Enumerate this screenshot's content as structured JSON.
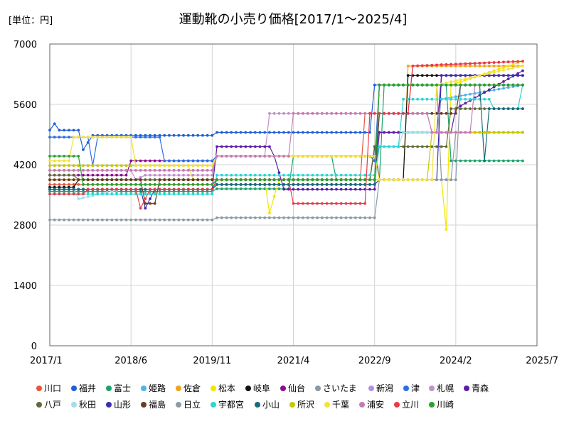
{
  "chart_data": {
    "type": "line",
    "title": "運動靴の小売り価格[2017/1～2025/4]",
    "unit_label": "[単位：円]",
    "xlabel": "",
    "ylabel": "",
    "x_ticks": [
      "2017/1",
      "2018/6",
      "2019/11",
      "2021/4",
      "2022/9",
      "2024/2",
      "2025/7"
    ],
    "x_range": [
      "2017-01",
      "2025-07"
    ],
    "y_ticks": [
      "0",
      "1400",
      "2800",
      "4200",
      "5600",
      "7000"
    ],
    "ylim": [
      0,
      7000
    ],
    "grid": true,
    "legend_position": "bottom",
    "series": [
      {
        "name": "川口",
        "color": "#e8553a",
        "points": [
          [
            "2017-01",
            3740
          ],
          [
            "2019-11",
            3740
          ],
          [
            "2019-12",
            3850
          ],
          [
            "2022-06",
            3850
          ],
          [
            "2022-07",
            5390
          ],
          [
            "2023-04",
            5390
          ],
          [
            "2023-05",
            6490
          ],
          [
            "2025-04",
            6600
          ]
        ]
      },
      {
        "name": "福井",
        "color": "#1f5fd6",
        "points": [
          [
            "2017-01",
            5000
          ],
          [
            "2017-02",
            5150
          ],
          [
            "2017-03",
            5000
          ],
          [
            "2017-07",
            5000
          ],
          [
            "2017-08",
            4550
          ],
          [
            "2017-10",
            4880
          ],
          [
            "2018-12",
            4880
          ],
          [
            "2019-01",
            4880
          ],
          [
            "2019-11",
            4880
          ],
          [
            "2019-12",
            4950
          ],
          [
            "2022-08",
            4950
          ],
          [
            "2022-09",
            6050
          ],
          [
            "2025-04",
            6050
          ]
        ]
      },
      {
        "name": "富士",
        "color": "#1aa36a",
        "points": [
          [
            "2017-01",
            3580
          ],
          [
            "2019-11",
            3580
          ],
          [
            "2019-12",
            3640
          ],
          [
            "2021-03",
            3640
          ],
          [
            "2021-04",
            4400
          ],
          [
            "2021-12",
            4400
          ],
          [
            "2022-01",
            3850
          ],
          [
            "2022-10",
            3850
          ],
          [
            "2022-11",
            6050
          ],
          [
            "2023-12",
            6050
          ],
          [
            "2024-01",
            4290
          ],
          [
            "2025-04",
            4290
          ]
        ]
      },
      {
        "name": "姫路",
        "color": "#4fb3e8",
        "points": [
          [
            "2017-01",
            3630
          ],
          [
            "2019-11",
            3630
          ],
          [
            "2019-12",
            3740
          ],
          [
            "2022-09",
            3740
          ],
          [
            "2022-10",
            5390
          ],
          [
            "2023-10",
            5390
          ],
          [
            "2023-11",
            5720
          ],
          [
            "2025-04",
            6050
          ]
        ]
      },
      {
        "name": "佐倉",
        "color": "#f0a21c",
        "points": [
          [
            "2017-01",
            3850
          ],
          [
            "2022-09",
            3850
          ],
          [
            "2022-10",
            3850
          ],
          [
            "2023-03",
            3850
          ],
          [
            "2023-04",
            6490
          ],
          [
            "2025-04",
            6490
          ]
        ]
      },
      {
        "name": "松本",
        "color": "#f2e600",
        "points": [
          [
            "2017-01",
            4840
          ],
          [
            "2018-06",
            4840
          ],
          [
            "2018-07",
            4180
          ],
          [
            "2019-06",
            4180
          ],
          [
            "2019-07",
            3850
          ],
          [
            "2020-10",
            3850
          ],
          [
            "2020-11",
            3080
          ],
          [
            "2021-01",
            3850
          ],
          [
            "2023-11",
            3850
          ],
          [
            "2023-12",
            2700
          ],
          [
            "2024-01",
            6050
          ],
          [
            "2025-04",
            6600
          ]
        ]
      },
      {
        "name": "岐阜",
        "color": "#111111",
        "points": [
          [
            "2017-01",
            3680
          ],
          [
            "2017-06",
            3680
          ],
          [
            "2017-07",
            3850
          ],
          [
            "2022-08",
            3850
          ],
          [
            "2022-09",
            4620
          ],
          [
            "2022-10",
            3850
          ],
          [
            "2023-03",
            3850
          ],
          [
            "2023-04",
            6270
          ],
          [
            "2025-04",
            6270
          ]
        ]
      },
      {
        "name": "仙台",
        "color": "#8a0f8f",
        "points": [
          [
            "2017-01",
            3960
          ],
          [
            "2018-05",
            3960
          ],
          [
            "2018-06",
            4290
          ],
          [
            "2019-11",
            4290
          ],
          [
            "2019-12",
            4400
          ],
          [
            "2022-09",
            4400
          ],
          [
            "2022-10",
            4950
          ],
          [
            "2023-10",
            4950
          ],
          [
            "2023-11",
            6270
          ],
          [
            "2025-04",
            6270
          ]
        ]
      },
      {
        "name": "さいたま",
        "color": "#8899a6",
        "points": [
          [
            "2017-01",
            3630
          ],
          [
            "2019-11",
            3630
          ],
          [
            "2019-12",
            3850
          ],
          [
            "2022-09",
            3850
          ],
          [
            "2022-10",
            6050
          ],
          [
            "2023-10",
            6050
          ],
          [
            "2023-11",
            3850
          ],
          [
            "2024-02",
            3850
          ],
          [
            "2024-03",
            6050
          ],
          [
            "2025-04",
            6050
          ]
        ]
      },
      {
        "name": "新潟",
        "color": "#b28ee6",
        "points": [
          [
            "2017-01",
            4070
          ],
          [
            "2019-11",
            4070
          ],
          [
            "2019-12",
            4400
          ],
          [
            "2022-09",
            4400
          ],
          [
            "2022-10",
            4950
          ],
          [
            "2025-04",
            4950
          ]
        ]
      },
      {
        "name": "津",
        "color": "#2a6ee8",
        "points": [
          [
            "2017-01",
            4840
          ],
          [
            "2017-09",
            4840
          ],
          [
            "2017-10",
            4180
          ],
          [
            "2017-11",
            4840
          ],
          [
            "2018-12",
            4840
          ],
          [
            "2019-01",
            4290
          ],
          [
            "2019-11",
            4290
          ],
          [
            "2019-12",
            4400
          ],
          [
            "2022-08",
            4400
          ],
          [
            "2022-09",
            4290
          ],
          [
            "2022-10",
            6050
          ],
          [
            "2025-04",
            6050
          ]
        ]
      },
      {
        "name": "札幌",
        "color": "#c28fcf",
        "points": [
          [
            "2017-01",
            4070
          ],
          [
            "2018-06",
            4070
          ],
          [
            "2018-07",
            3850
          ],
          [
            "2018-09",
            3960
          ],
          [
            "2019-11",
            3960
          ],
          [
            "2019-12",
            4400
          ],
          [
            "2020-10",
            4400
          ],
          [
            "2020-11",
            5390
          ],
          [
            "2023-08",
            5390
          ],
          [
            "2023-09",
            4950
          ],
          [
            "2025-04",
            4950
          ]
        ]
      },
      {
        "name": "青森",
        "color": "#5b1ea8",
        "points": [
          [
            "2017-01",
            3630
          ],
          [
            "2019-11",
            3630
          ],
          [
            "2019-12",
            4620
          ],
          [
            "2020-11",
            4620
          ],
          [
            "2020-12",
            4400
          ],
          [
            "2021-02",
            3630
          ],
          [
            "2022-09",
            3630
          ],
          [
            "2022-10",
            4950
          ],
          [
            "2024-01",
            4950
          ],
          [
            "2024-02",
            5500
          ],
          [
            "2025-04",
            6380
          ]
        ]
      },
      {
        "name": "八戸",
        "color": "#5e6b3a",
        "points": [
          [
            "2017-01",
            3960
          ],
          [
            "2017-06",
            3960
          ],
          [
            "2017-07",
            3850
          ],
          [
            "2019-11",
            3850
          ],
          [
            "2019-12",
            3850
          ],
          [
            "2022-08",
            3850
          ],
          [
            "2022-09",
            4620
          ],
          [
            "2023-12",
            4620
          ],
          [
            "2024-01",
            5500
          ],
          [
            "2025-04",
            5500
          ]
        ]
      },
      {
        "name": "秋田",
        "color": "#9fe0e8",
        "points": [
          [
            "2017-01",
            3630
          ],
          [
            "2017-06",
            3630
          ],
          [
            "2017-07",
            3410
          ],
          [
            "2018-04",
            3630
          ],
          [
            "2019-11",
            3630
          ],
          [
            "2019-12",
            3740
          ],
          [
            "2022-09",
            3740
          ],
          [
            "2022-10",
            4620
          ],
          [
            "2023-02",
            4620
          ],
          [
            "2023-03",
            4950
          ],
          [
            "2025-04",
            4950
          ]
        ]
      },
      {
        "name": "山形",
        "color": "#3a2fb0",
        "points": [
          [
            "2017-01",
            3630
          ],
          [
            "2018-08",
            3630
          ],
          [
            "2018-09",
            3190
          ],
          [
            "2018-11",
            3630
          ],
          [
            "2019-11",
            3630
          ],
          [
            "2019-12",
            3740
          ],
          [
            "2022-09",
            3740
          ],
          [
            "2022-10",
            3850
          ],
          [
            "2023-10",
            3850
          ],
          [
            "2023-11",
            6270
          ],
          [
            "2025-04",
            6270
          ]
        ]
      },
      {
        "name": "福島",
        "color": "#6b3b1f",
        "points": [
          [
            "2017-01",
            3850
          ],
          [
            "2018-08",
            3850
          ],
          [
            "2018-09",
            3300
          ],
          [
            "2018-11",
            3300
          ],
          [
            "2018-12",
            3850
          ],
          [
            "2019-11",
            3850
          ],
          [
            "2019-12",
            3850
          ],
          [
            "2022-09",
            3850
          ],
          [
            "2022-10",
            5390
          ],
          [
            "2024-02",
            5390
          ],
          [
            "2024-03",
            6050
          ],
          [
            "2025-04",
            6050
          ]
        ]
      },
      {
        "name": "日立",
        "color": "#8a9ba8",
        "points": [
          [
            "2017-01",
            2920
          ],
          [
            "2019-11",
            2920
          ],
          [
            "2019-12",
            2970
          ],
          [
            "2022-09",
            2970
          ],
          [
            "2022-10",
            3850
          ],
          [
            "2024-01",
            3850
          ],
          [
            "2024-02",
            4950
          ],
          [
            "2025-04",
            4950
          ]
        ]
      },
      {
        "name": "宇都宮",
        "color": "#2ad6d6",
        "points": [
          [
            "2017-01",
            3520
          ],
          [
            "2019-11",
            3520
          ],
          [
            "2019-12",
            3960
          ],
          [
            "2022-09",
            3960
          ],
          [
            "2022-10",
            4620
          ],
          [
            "2023-02",
            4620
          ],
          [
            "2023-03",
            5720
          ],
          [
            "2024-09",
            5720
          ],
          [
            "2024-10",
            5500
          ],
          [
            "2025-03",
            5500
          ],
          [
            "2025-04",
            6050
          ]
        ]
      },
      {
        "name": "小山",
        "color": "#176b7a",
        "points": [
          [
            "2017-01",
            3630
          ],
          [
            "2019-11",
            3630
          ],
          [
            "2019-12",
            3740
          ],
          [
            "2022-09",
            3740
          ],
          [
            "2022-10",
            6050
          ],
          [
            "2024-07",
            6050
          ],
          [
            "2024-08",
            4290
          ],
          [
            "2024-09",
            5500
          ],
          [
            "2025-04",
            5500
          ]
        ]
      },
      {
        "name": "所沢",
        "color": "#c8c800",
        "points": [
          [
            "2017-01",
            4180
          ],
          [
            "2018-06",
            4180
          ],
          [
            "2018-07",
            4180
          ],
          [
            "2019-11",
            4180
          ],
          [
            "2019-12",
            4400
          ],
          [
            "2022-09",
            4400
          ],
          [
            "2022-10",
            3850
          ],
          [
            "2023-08",
            3850
          ],
          [
            "2023-09",
            4950
          ],
          [
            "2025-04",
            4950
          ]
        ]
      },
      {
        "name": "千葉",
        "color": "#f5e23a",
        "points": [
          [
            "2017-01",
            4290
          ],
          [
            "2017-05",
            4290
          ],
          [
            "2017-06",
            4840
          ],
          [
            "2018-06",
            4840
          ],
          [
            "2018-07",
            4180
          ],
          [
            "2019-11",
            4180
          ],
          [
            "2019-12",
            4400
          ],
          [
            "2022-09",
            4400
          ],
          [
            "2022-10",
            3850
          ],
          [
            "2023-09",
            3850
          ],
          [
            "2023-10",
            6050
          ],
          [
            "2025-04",
            6490
          ]
        ]
      },
      {
        "name": "浦安",
        "color": "#c77bb0",
        "points": [
          [
            "2017-01",
            4070
          ],
          [
            "2019-11",
            4070
          ],
          [
            "2019-12",
            4400
          ],
          [
            "2021-03",
            4400
          ],
          [
            "2021-04",
            5390
          ],
          [
            "2023-08",
            5390
          ],
          [
            "2023-09",
            4950
          ],
          [
            "2024-05",
            4950
          ],
          [
            "2024-06",
            6050
          ],
          [
            "2025-04",
            6050
          ]
        ]
      },
      {
        "name": "立川",
        "color": "#e83a4a",
        "points": [
          [
            "2017-01",
            3520
          ],
          [
            "2017-08",
            3520
          ],
          [
            "2017-09",
            3630
          ],
          [
            "2018-07",
            3630
          ],
          [
            "2018-08",
            3190
          ],
          [
            "2018-10",
            3630
          ],
          [
            "2019-11",
            3630
          ],
          [
            "2019-12",
            3850
          ],
          [
            "2021-03",
            3850
          ],
          [
            "2021-04",
            3300
          ],
          [
            "2022-07",
            3300
          ],
          [
            "2022-08",
            5390
          ],
          [
            "2023-04",
            5390
          ],
          [
            "2023-05",
            6490
          ],
          [
            "2025-04",
            6600
          ]
        ]
      },
      {
        "name": "川崎",
        "color": "#2aa32a",
        "points": [
          [
            "2017-01",
            4400
          ],
          [
            "2017-07",
            4400
          ],
          [
            "2017-08",
            3740
          ],
          [
            "2019-11",
            3740
          ],
          [
            "2019-12",
            3850
          ],
          [
            "2022-09",
            3850
          ],
          [
            "2022-10",
            6050
          ],
          [
            "2025-04",
            6050
          ]
        ]
      }
    ]
  }
}
